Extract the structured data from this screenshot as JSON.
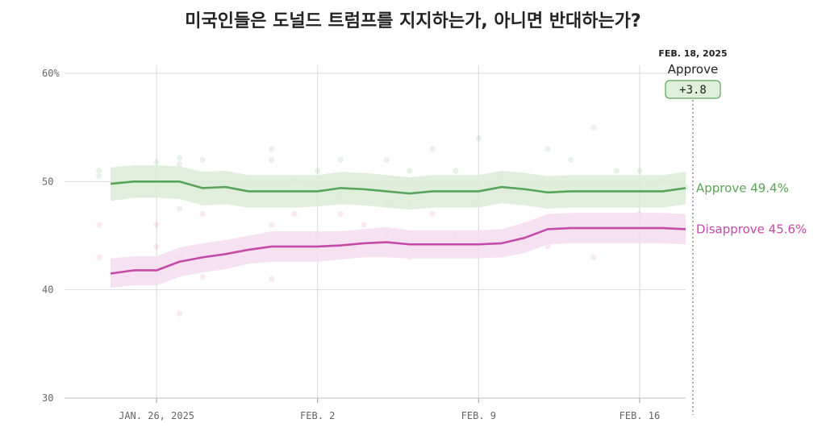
{
  "chart_data": {
    "type": "line",
    "title": "미국인들은 도널드 트럼프를 지지하는가, 아니면 반대하는가?",
    "ylim": [
      30,
      60
    ],
    "yticks": [
      {
        "value": 60,
        "label": "60%"
      },
      {
        "value": 50,
        "label": "50"
      },
      {
        "value": 40,
        "label": "40"
      },
      {
        "value": 30,
        "label": "30"
      }
    ],
    "xticks": [
      {
        "day": 26,
        "label": "JAN. 26, 2025"
      },
      {
        "day": 33,
        "label": "FEB. 2"
      },
      {
        "day": 40,
        "label": "FEB. 9"
      },
      {
        "day": 47,
        "label": "FEB. 16"
      }
    ],
    "x_domain": [
      22,
      49
    ],
    "grid": true,
    "series": [
      {
        "name": "Approve",
        "end_label": "Approve 49.4%",
        "color": "#5aa35a",
        "band_color": "#d9ecd6",
        "x": [
          24,
          25,
          26,
          27,
          28,
          29,
          30,
          31,
          32,
          33,
          34,
          35,
          36,
          37,
          38,
          39,
          40,
          41,
          42,
          43,
          44,
          45,
          46,
          47,
          48,
          49
        ],
        "y": [
          49.8,
          50.0,
          50.0,
          50.0,
          49.4,
          49.5,
          49.1,
          49.1,
          49.1,
          49.1,
          49.4,
          49.3,
          49.1,
          48.9,
          49.1,
          49.1,
          49.1,
          49.5,
          49.3,
          49.0,
          49.1,
          49.1,
          49.1,
          49.1,
          49.1,
          49.4
        ],
        "band_lower": [
          48.2,
          48.5,
          48.5,
          48.4,
          47.8,
          47.9,
          47.6,
          47.6,
          47.6,
          47.7,
          47.9,
          47.8,
          47.6,
          47.4,
          47.6,
          47.6,
          47.6,
          48.0,
          47.8,
          47.5,
          47.6,
          47.6,
          47.6,
          47.6,
          47.6,
          47.9
        ],
        "band_upper": [
          51.3,
          51.5,
          51.5,
          51.4,
          50.9,
          51.0,
          50.6,
          50.6,
          50.6,
          50.6,
          50.9,
          50.8,
          50.6,
          50.4,
          50.6,
          50.6,
          50.6,
          51.0,
          50.8,
          50.5,
          50.6,
          50.6,
          50.6,
          50.6,
          50.6,
          50.9
        ]
      },
      {
        "name": "Disapprove",
        "end_label": "Disapprove 45.6%",
        "color": "#c44aa8",
        "band_color": "#f3dcef",
        "x": [
          24,
          25,
          26,
          27,
          28,
          29,
          30,
          31,
          32,
          33,
          34,
          35,
          36,
          37,
          38,
          39,
          40,
          41,
          42,
          43,
          44,
          45,
          46,
          47,
          48,
          49
        ],
        "y": [
          41.5,
          41.8,
          41.8,
          42.6,
          43.0,
          43.3,
          43.7,
          44.0,
          44.0,
          44.0,
          44.1,
          44.3,
          44.4,
          44.2,
          44.2,
          44.2,
          44.2,
          44.3,
          44.8,
          45.6,
          45.7,
          45.7,
          45.7,
          45.7,
          45.7,
          45.6
        ],
        "band_lower": [
          40.2,
          40.4,
          40.4,
          41.2,
          41.6,
          41.9,
          42.4,
          42.6,
          42.6,
          42.6,
          42.8,
          43.0,
          43.0,
          42.9,
          42.9,
          42.9,
          42.9,
          43.0,
          43.4,
          44.2,
          44.3,
          44.3,
          44.3,
          44.3,
          44.3,
          44.2
        ],
        "band_upper": [
          42.9,
          43.1,
          43.1,
          43.9,
          44.3,
          44.6,
          45.0,
          45.4,
          45.4,
          45.4,
          45.4,
          45.6,
          45.8,
          45.5,
          45.5,
          45.5,
          45.5,
          45.6,
          46.2,
          47.0,
          47.1,
          47.1,
          47.1,
          47.1,
          47.1,
          47.0
        ]
      }
    ],
    "polls": {
      "approve": [
        [
          23.5,
          51.0
        ],
        [
          23.5,
          50.5
        ],
        [
          26,
          51.8
        ],
        [
          27,
          52.2
        ],
        [
          27,
          51.6
        ],
        [
          27,
          47.5
        ],
        [
          28,
          49.5
        ],
        [
          28,
          52.0
        ],
        [
          31,
          53.0
        ],
        [
          31,
          52.0
        ],
        [
          32,
          50.0
        ],
        [
          33,
          51.0
        ],
        [
          34,
          52.0
        ],
        [
          34,
          49.0
        ],
        [
          36,
          52.0
        ],
        [
          37,
          51.0
        ],
        [
          37,
          48.0
        ],
        [
          38,
          53.0
        ],
        [
          39,
          51.0
        ],
        [
          40,
          54.0
        ],
        [
          41,
          50.0
        ],
        [
          42,
          49.5
        ],
        [
          43,
          53.0
        ],
        [
          44,
          52.0
        ],
        [
          45,
          55.0
        ],
        [
          46,
          51.0
        ],
        [
          47,
          51.0
        ],
        [
          47,
          49.0
        ],
        [
          48,
          50.0
        ],
        [
          49,
          49.5
        ]
      ],
      "disapprove": [
        [
          23.5,
          46.0
        ],
        [
          23.5,
          43.0
        ],
        [
          26,
          46.0
        ],
        [
          26,
          44.0
        ],
        [
          27,
          37.8
        ],
        [
          27,
          43.0
        ],
        [
          28,
          47.0
        ],
        [
          28,
          41.2
        ],
        [
          31,
          46.0
        ],
        [
          31,
          41.0
        ],
        [
          32,
          47.0
        ],
        [
          33,
          45.0
        ],
        [
          34,
          47.0
        ],
        [
          35,
          46.0
        ],
        [
          36,
          48.0
        ],
        [
          36,
          45.0
        ],
        [
          37,
          43.0
        ],
        [
          38,
          47.0
        ],
        [
          39,
          45.0
        ],
        [
          40,
          48.0
        ],
        [
          41,
          44.0
        ],
        [
          42,
          46.0
        ],
        [
          43,
          44.0
        ],
        [
          44,
          46.0
        ],
        [
          45,
          43.0
        ],
        [
          46,
          46.0
        ],
        [
          47,
          47.0
        ],
        [
          47,
          45.0
        ],
        [
          48,
          46.0
        ]
      ]
    },
    "annotation": {
      "date": "FEB. 18, 2025",
      "label": "Approve",
      "value": "+3.8",
      "day": 49
    }
  }
}
